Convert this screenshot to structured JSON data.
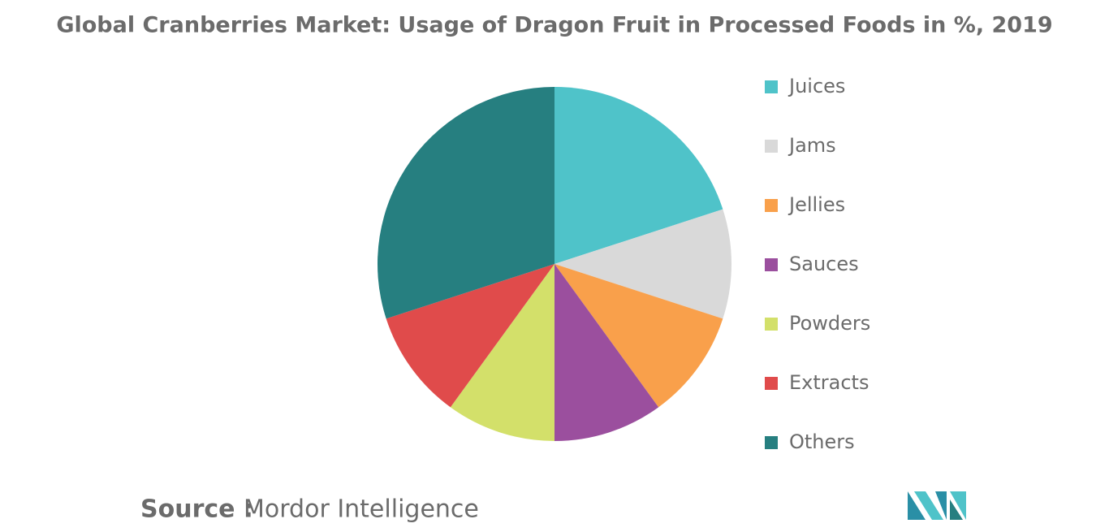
{
  "chart_data": {
    "type": "pie",
    "title": "Global Cranberries Market: Usage of Dragon Fruit in Processed Foods in %, 2019",
    "categories": [
      "Juices",
      "Jams",
      "Jellies",
      "Sauces",
      "Powders",
      "Extracts",
      "Others"
    ],
    "values": [
      20,
      10,
      10,
      10,
      10,
      10,
      30
    ],
    "colors": [
      "#4fc3c9",
      "#d9d9d9",
      "#f9a04b",
      "#9b4f9e",
      "#d3e06a",
      "#e04b4b",
      "#267f80"
    ],
    "legend": "right",
    "source_label": "Source :",
    "source": "Mordor Intelligence"
  }
}
